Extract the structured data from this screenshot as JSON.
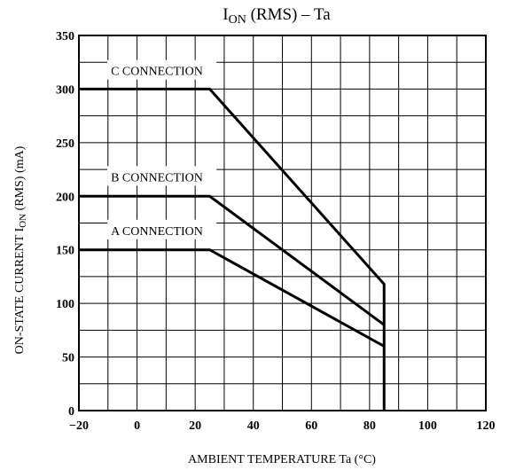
{
  "chart_data": {
    "type": "line",
    "title": "ION (RMS) – Ta",
    "title_main": "I",
    "title_sub": "ON",
    "title_rest": " (RMS)  –  Ta",
    "xlabel": "AMBIENT TEMPERATURE   Ta   (°C)",
    "ylabel_pre": "ON-STATE CURRENT   I",
    "ylabel_sub": "ON",
    "ylabel_post": " (RMS)   (mA)",
    "xlim": [
      -20,
      120
    ],
    "ylim": [
      0,
      350
    ],
    "x_ticks": [
      "-20",
      "0",
      "20",
      "40",
      "60",
      "80",
      "100",
      "120"
    ],
    "y_ticks": [
      "0",
      "50",
      "100",
      "150",
      "200",
      "250",
      "300",
      "350"
    ],
    "grid": true,
    "series": [
      {
        "name": "C CONNECTION",
        "x": [
          -20,
          25,
          85,
          85
        ],
        "y": [
          300,
          300,
          118,
          0
        ]
      },
      {
        "name": "B CONNECTION",
        "x": [
          -20,
          25,
          85
        ],
        "y": [
          200,
          200,
          80
        ]
      },
      {
        "name": "A CONNECTION",
        "x": [
          -20,
          25,
          85
        ],
        "y": [
          150,
          150,
          60
        ]
      }
    ]
  }
}
